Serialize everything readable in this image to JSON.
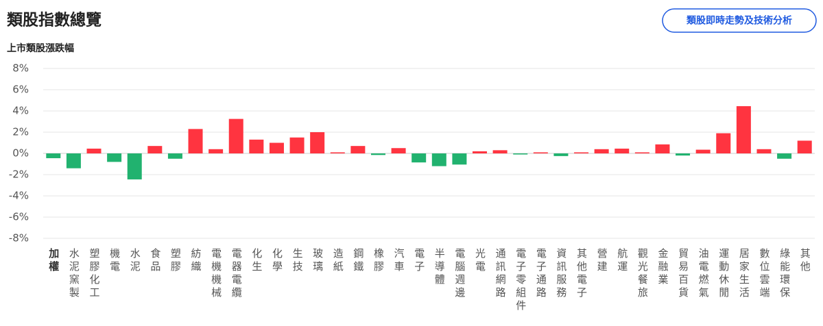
{
  "header": {
    "title": "類股指數總覽",
    "button": "類股即時走勢及技術分析"
  },
  "chart_data": {
    "type": "bar",
    "title": "上市類股漲跌幅",
    "categories": [
      "加權",
      "水泥窯製",
      "塑膠化工",
      "機電",
      "水泥",
      "食品",
      "塑膠",
      "紡織",
      "電機機械",
      "電器電纜",
      "化生",
      "化學",
      "生技",
      "玻璃",
      "造紙",
      "鋼鐵",
      "橡膠",
      "汽車",
      "電子",
      "半導體",
      "電腦週邊",
      "光電",
      "通訊網路",
      "電子零組件",
      "電子通路",
      "資訊服務",
      "其他電子",
      "營建",
      "航運",
      "觀光餐旅",
      "金融業",
      "貿易百貨",
      "油電燃氣",
      "運動休閒",
      "居家生活",
      "數位雲端",
      "綠能環保",
      "其他"
    ],
    "values": [
      -0.45,
      -1.4,
      0.45,
      -0.8,
      -2.45,
      0.7,
      -0.5,
      2.3,
      0.4,
      3.25,
      1.3,
      1.0,
      1.5,
      2.0,
      0.1,
      0.7,
      -0.15,
      0.5,
      -0.85,
      -1.2,
      -1.05,
      0.2,
      0.3,
      -0.1,
      0.1,
      -0.25,
      0.1,
      0.4,
      0.45,
      0.1,
      0.85,
      -0.2,
      0.35,
      1.9,
      4.45,
      0.4,
      -0.5,
      1.2
    ],
    "up_color": "#ff3440",
    "down_color": "#21b26f",
    "ylim": [
      -8,
      8
    ],
    "yticks": [
      {
        "value": 8,
        "label": "8%"
      },
      {
        "value": 6,
        "label": "6%"
      },
      {
        "value": 4,
        "label": "4%"
      },
      {
        "value": 2,
        "label": "2%"
      },
      {
        "value": 0,
        "label": "0%"
      },
      {
        "value": -2,
        "label": "-2%"
      },
      {
        "value": -4,
        "label": "-4%"
      },
      {
        "value": -6,
        "label": "-6%"
      },
      {
        "value": -8,
        "label": "-8%"
      }
    ],
    "grid": true
  }
}
